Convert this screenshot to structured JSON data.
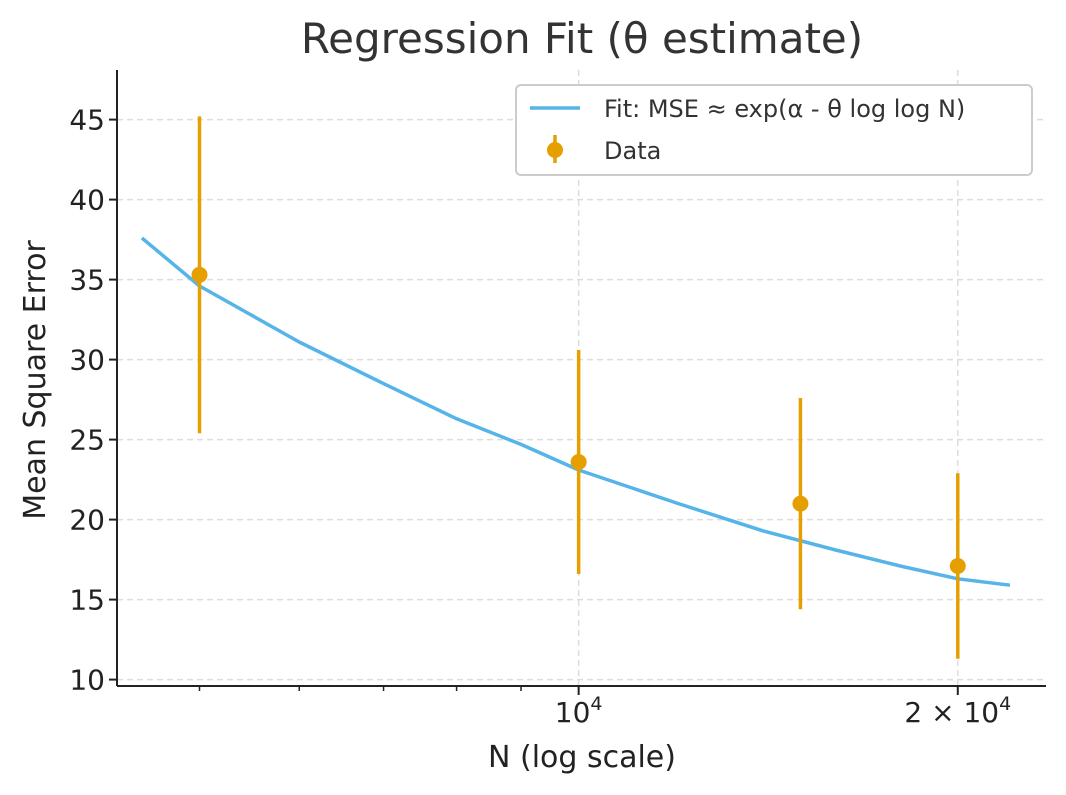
{
  "chart_data": {
    "type": "scatter",
    "title": "Regression Fit (θ estimate)",
    "xlabel": "N (log scale)",
    "ylabel": "Mean Square Error",
    "x_scale": "log",
    "xlim": [
      4300,
      23500
    ],
    "ylim": [
      9.6,
      48.1
    ],
    "grid": true,
    "grid_style": "dashed",
    "legend_position": "top-right",
    "colors": {
      "fit": "#56B4E9",
      "data": "#E69F00",
      "axis": "#222222",
      "grid": "#dddddd"
    },
    "y_ticks": [
      {
        "value": 10,
        "label": "10"
      },
      {
        "value": 15,
        "label": "15"
      },
      {
        "value": 20,
        "label": "20"
      },
      {
        "value": 25,
        "label": "25"
      },
      {
        "value": 30,
        "label": "30"
      },
      {
        "value": 35,
        "label": "35"
      },
      {
        "value": 40,
        "label": "40"
      },
      {
        "value": 45,
        "label": "45"
      }
    ],
    "x_major_ticks": [
      {
        "value": 10000,
        "base": "10",
        "exp": "4",
        "prefix": ""
      },
      {
        "value": 20000,
        "base": "10",
        "exp": "4",
        "prefix": "2 × "
      }
    ],
    "x_minor_ticks": [
      4000,
      5000,
      6000,
      7000,
      8000,
      9000
    ],
    "series": [
      {
        "name": "Data",
        "kind": "errorbar",
        "x": [
          5000,
          10000,
          15000,
          20000
        ],
        "y": [
          35.3,
          23.6,
          21.0,
          17.1
        ],
        "err": [
          9.9,
          7.0,
          6.6,
          5.8
        ]
      },
      {
        "name": "Fit: MSE ≈ exp(α - θ log log N)",
        "kind": "line",
        "x": [
          4500,
          5000,
          6000,
          7000,
          8000,
          9000,
          10000,
          12000,
          14000,
          16000,
          18000,
          20000,
          22000
        ],
        "y": [
          37.6,
          34.6,
          31.1,
          28.5,
          26.3,
          24.7,
          23.1,
          21.0,
          19.3,
          18.1,
          17.1,
          16.3,
          15.9
        ]
      }
    ]
  }
}
